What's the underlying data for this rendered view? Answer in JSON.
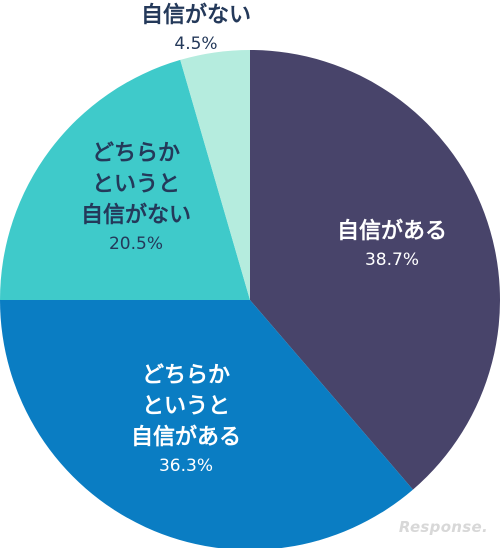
{
  "chart_data": {
    "type": "pie",
    "start_angle_deg": 0,
    "direction": "clockwise",
    "slices": [
      {
        "name_lines": [
          "自信がある"
        ],
        "value_label": "38.7%",
        "value": 38.7,
        "color": "#48446a",
        "label_color": "#ffffff"
      },
      {
        "name_lines": [
          "どちらか",
          "というと",
          "自信がある"
        ],
        "value_label": "36.3%",
        "value": 36.3,
        "color": "#0a7dc3",
        "label_color": "#ffffff"
      },
      {
        "name_lines": [
          "どちらか",
          "というと",
          "自信がない"
        ],
        "value_label": "20.5%",
        "value": 20.5,
        "color": "#3fcaca",
        "label_color": "#24395a"
      },
      {
        "name_lines": [
          "自信がない"
        ],
        "value_label": "4.5%",
        "value": 4.5,
        "color": "#b5ecde",
        "label_color": "#24395a"
      }
    ]
  },
  "watermark": "Response."
}
